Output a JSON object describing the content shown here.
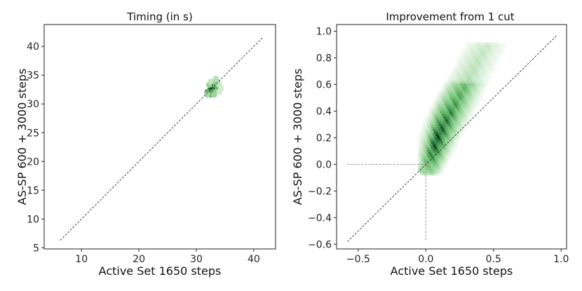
{
  "chart_data": [
    {
      "type": "hexbin",
      "title": "Timing (in s)",
      "xlabel": "Active Set 1650 steps",
      "ylabel": "AS-SP 600 + 3000 steps",
      "xlim": [
        3.5,
        43.8
      ],
      "ylim": [
        4.8,
        43.8
      ],
      "xticks": [
        10,
        20,
        30,
        40
      ],
      "yticks": [
        5,
        10,
        15,
        20,
        25,
        30,
        35,
        40
      ],
      "diagonal": [
        6.3,
        41.5
      ],
      "cells": [
        {
          "x": 32.5,
          "y": 32.7,
          "d": 1.0
        },
        {
          "x": 33.1,
          "y": 32.7,
          "d": 0.85
        },
        {
          "x": 32.8,
          "y": 33.3,
          "d": 0.7
        },
        {
          "x": 33.4,
          "y": 33.3,
          "d": 0.5
        },
        {
          "x": 33.1,
          "y": 33.9,
          "d": 0.45
        },
        {
          "x": 33.7,
          "y": 33.9,
          "d": 0.3
        },
        {
          "x": 33.4,
          "y": 34.4,
          "d": 0.25
        },
        {
          "x": 33.7,
          "y": 32.7,
          "d": 0.55
        },
        {
          "x": 32.2,
          "y": 32.1,
          "d": 0.75
        },
        {
          "x": 32.8,
          "y": 32.1,
          "d": 0.65
        },
        {
          "x": 33.4,
          "y": 32.1,
          "d": 0.4
        },
        {
          "x": 31.9,
          "y": 32.1,
          "d": 0.6
        },
        {
          "x": 32.5,
          "y": 31.6,
          "d": 0.55
        },
        {
          "x": 33.1,
          "y": 31.6,
          "d": 0.35
        },
        {
          "x": 31.9,
          "y": 31.6,
          "d": 0.3
        },
        {
          "x": 34.0,
          "y": 33.3,
          "d": 0.2
        },
        {
          "x": 34.3,
          "y": 32.7,
          "d": 0.15
        },
        {
          "x": 32.2,
          "y": 33.3,
          "d": 0.35
        },
        {
          "x": 32.5,
          "y": 33.9,
          "d": 0.2
        },
        {
          "x": 34.0,
          "y": 32.1,
          "d": 0.15
        }
      ]
    },
    {
      "type": "hexbin",
      "title": "Improvement from 1 cut",
      "xlabel": "Active Set 1650 steps",
      "ylabel": "AS-SP 600 + 3000 steps",
      "xlim": [
        -0.66,
        1.04
      ],
      "ylim": [
        -0.635,
        1.05
      ],
      "xticks": [
        -0.5,
        0.0,
        0.5,
        1.0
      ],
      "xtick_labels": [
        "−0.5",
        "0.0",
        "0.5",
        "1.0"
      ],
      "yticks": [
        -0.6,
        -0.4,
        -0.2,
        0.0,
        0.2,
        0.4,
        0.6,
        0.8,
        1.0
      ],
      "ytick_labels": [
        "−0.6",
        "−0.4",
        "−0.2",
        "0.0",
        "0.2",
        "0.4",
        "0.6",
        "0.8",
        "1.0"
      ],
      "diagonal": [
        -0.58,
        0.97
      ],
      "reference_point": [
        0.0,
        0.0
      ],
      "band": {
        "start_x": 0.0,
        "end_x": 0.46,
        "slope": 1.9,
        "offset": 0.03,
        "half_width": 0.13,
        "peak_density_x": 0.08
      }
    }
  ]
}
